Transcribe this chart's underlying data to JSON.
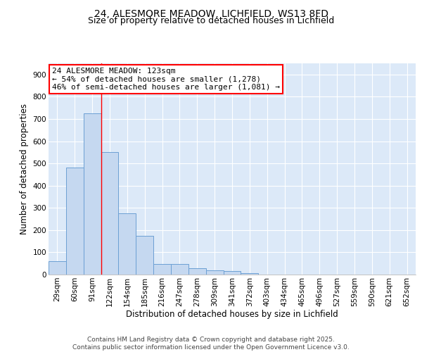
{
  "title": "24, ALESMORE MEADOW, LICHFIELD, WS13 8FD",
  "subtitle": "Size of property relative to detached houses in Lichfield",
  "xlabel": "Distribution of detached houses by size in Lichfield",
  "ylabel": "Number of detached properties",
  "categories": [
    "29sqm",
    "60sqm",
    "91sqm",
    "122sqm",
    "154sqm",
    "185sqm",
    "216sqm",
    "247sqm",
    "278sqm",
    "309sqm",
    "341sqm",
    "372sqm",
    "403sqm",
    "434sqm",
    "465sqm",
    "496sqm",
    "527sqm",
    "559sqm",
    "590sqm",
    "621sqm",
    "652sqm"
  ],
  "values": [
    60,
    480,
    725,
    550,
    275,
    175,
    47,
    47,
    30,
    18,
    15,
    5,
    0,
    0,
    0,
    0,
    0,
    0,
    0,
    0,
    0
  ],
  "bar_color": "#c5d8f0",
  "bar_edge_color": "#6ca0d4",
  "background_color": "#dce9f8",
  "grid_color": "#ffffff",
  "red_line_bar_index": 2,
  "annotation_line1": "24 ALESMORE MEADOW: 123sqm",
  "annotation_line2": "← 54% of detached houses are smaller (1,278)",
  "annotation_line3": "46% of semi-detached houses are larger (1,081) →",
  "ylim": [
    0,
    950
  ],
  "yticks": [
    0,
    100,
    200,
    300,
    400,
    500,
    600,
    700,
    800,
    900
  ],
  "footer_line1": "Contains HM Land Registry data © Crown copyright and database right 2025.",
  "footer_line2": "Contains public sector information licensed under the Open Government Licence v3.0.",
  "title_fontsize": 10,
  "subtitle_fontsize": 9,
  "axis_label_fontsize": 8.5,
  "tick_fontsize": 7.5,
  "annotation_fontsize": 8,
  "footer_fontsize": 6.5
}
